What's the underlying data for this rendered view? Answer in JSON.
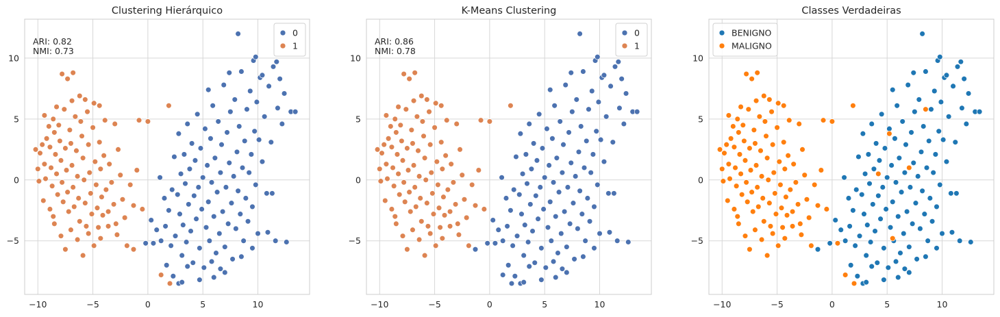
{
  "colors": {
    "cluster0": "#4c72b0",
    "cluster1": "#dd8452",
    "benigno": "#1f77b4",
    "maligno": "#ff7f0e",
    "grid": "#d7d7d7",
    "background": "#ffffff"
  },
  "chart_data": [
    {
      "type": "scatter",
      "title": "Clustering Hierárquico",
      "xlabel": "",
      "ylabel": "",
      "xlim": [
        -11.2,
        14.7
      ],
      "ylim": [
        -9.4,
        13.2
      ],
      "xticks": [
        -10,
        -5,
        0,
        5,
        10
      ],
      "yticks": [
        -5,
        0,
        5,
        10
      ],
      "tick_labels_x": [
        "−10",
        "−5",
        "0",
        "5",
        "10"
      ],
      "tick_labels_y": [
        "−5",
        "0",
        "5",
        "10"
      ],
      "grid": true,
      "legend_position": "top-right",
      "metrics_text": [
        "ARI: 0.82",
        "NMI: 0.73"
      ],
      "series": [
        {
          "name": "0",
          "color_key": "cluster0",
          "ref": "blob_right",
          "extra": [
            [
              -0.2,
              -5.2
            ],
            [
              0.5,
              -5.2
            ],
            [
              1.2,
              -5.0
            ]
          ]
        },
        {
          "name": "1",
          "color_key": "cluster1",
          "ref": "blob_left",
          "extra": [
            [
              -1.9,
              -5.4
            ],
            [
              -1.3,
              -5.7
            ],
            [
              0.0,
              4.8
            ],
            [
              1.2,
              -7.8
            ],
            [
              2.0,
              -8.5
            ]
          ]
        }
      ]
    },
    {
      "type": "scatter",
      "title": "K-Means Clustering",
      "xlabel": "",
      "ylabel": "",
      "xlim": [
        -11.2,
        14.7
      ],
      "ylim": [
        -9.4,
        13.2
      ],
      "xticks": [
        -10,
        -5,
        0,
        5,
        10
      ],
      "yticks": [
        -5,
        0,
        5,
        10
      ],
      "tick_labels_x": [
        "−10",
        "−5",
        "0",
        "5",
        "10"
      ],
      "tick_labels_y": [
        "−5",
        "0",
        "5",
        "10"
      ],
      "grid": true,
      "legend_position": "top-right",
      "metrics_text": [
        "ARI: 0.86",
        "NMI: 0.78"
      ],
      "series": [
        {
          "name": "0",
          "color_key": "cluster0",
          "ref": "blob_right",
          "extra": [
            [
              -0.2,
              -5.2
            ],
            [
              0.5,
              -5.2
            ],
            [
              1.2,
              -5.0
            ],
            [
              1.2,
              -7.8
            ],
            [
              2.0,
              -8.5
            ],
            [
              -1.3,
              -5.7
            ]
          ]
        },
        {
          "name": "1",
          "color_key": "cluster1",
          "ref": "blob_left",
          "extra": [
            [
              -1.9,
              -5.4
            ],
            [
              0.0,
              4.8
            ]
          ]
        }
      ]
    },
    {
      "type": "scatter",
      "title": "Classes Verdadeiras",
      "xlabel": "",
      "ylabel": "",
      "xlim": [
        -11.2,
        14.7
      ],
      "ylim": [
        -9.4,
        13.2
      ],
      "xticks": [
        -10,
        -5,
        0,
        5,
        10
      ],
      "yticks": [
        -5,
        0,
        5,
        10
      ],
      "tick_labels_x": [
        "−10",
        "−5",
        "0",
        "5",
        "10"
      ],
      "tick_labels_y": [
        "−5",
        "0",
        "5",
        "10"
      ],
      "grid": true,
      "legend_position": "top-left",
      "metrics_text": [],
      "series": [
        {
          "name": "BENIGNO",
          "color_key": "benigno",
          "ref": "blob_right",
          "extra": [
            [
              -0.2,
              -5.2
            ],
            [
              1.2,
              -5.0
            ],
            [
              -1.3,
              -5.7
            ]
          ]
        },
        {
          "name": "MALIGNO",
          "color_key": "maligno",
          "ref": "blob_left",
          "extra": [
            [
              0.5,
              -5.2
            ],
            [
              -1.9,
              -5.4
            ],
            [
              0.0,
              4.8
            ],
            [
              1.2,
              -7.8
            ],
            [
              2.0,
              -8.5
            ],
            [
              5.2,
              3.8
            ],
            [
              7.0,
              1.0
            ],
            [
              5.5,
              -4.8
            ],
            [
              8.5,
              5.8
            ],
            [
              4.2,
              0.5
            ]
          ]
        }
      ]
    }
  ],
  "point_clouds": {
    "blob_left": [
      [
        -10.2,
        2.5
      ],
      [
        -10.0,
        0.9
      ],
      [
        -9.8,
        2.2
      ],
      [
        -9.6,
        2.9
      ],
      [
        -9.4,
        1.3
      ],
      [
        -9.3,
        0.1
      ],
      [
        -9.2,
        3.4
      ],
      [
        -9.0,
        4.4
      ],
      [
        -8.9,
        2.7
      ],
      [
        -8.8,
        1.0
      ],
      [
        -8.7,
        -0.5
      ],
      [
        -8.6,
        5.0
      ],
      [
        -8.5,
        3.9
      ],
      [
        -8.4,
        2.1
      ],
      [
        -8.3,
        0.5
      ],
      [
        -8.2,
        -1.2
      ],
      [
        -8.1,
        4.5
      ],
      [
        -8.0,
        3.2
      ],
      [
        -7.9,
        1.6
      ],
      [
        -7.8,
        -0.2
      ],
      [
        -7.7,
        -1.8
      ],
      [
        -7.6,
        5.8
      ],
      [
        -7.5,
        2.6
      ],
      [
        -7.4,
        0.8
      ],
      [
        -7.3,
        -1.0
      ],
      [
        -7.2,
        -2.6
      ],
      [
        -7.1,
        4.1
      ],
      [
        -7.0,
        3.0
      ],
      [
        -6.9,
        1.2
      ],
      [
        -6.8,
        -0.6
      ],
      [
        -6.7,
        -2.2
      ],
      [
        -6.6,
        5.2
      ],
      [
        -6.5,
        2.4
      ],
      [
        -6.4,
        0.3
      ],
      [
        -6.3,
        -1.5
      ],
      [
        -6.2,
        -3.4
      ],
      [
        -6.1,
        4.8
      ],
      [
        -6.0,
        3.6
      ],
      [
        -5.9,
        1.8
      ],
      [
        -5.8,
        0.0
      ],
      [
        -5.7,
        -1.9
      ],
      [
        -5.6,
        -3.8
      ],
      [
        -5.5,
        5.6
      ],
      [
        -5.4,
        2.9
      ],
      [
        -5.3,
        0.6
      ],
      [
        -5.2,
        -1.1
      ],
      [
        -5.1,
        -2.8
      ],
      [
        -5.0,
        4.3
      ],
      [
        -4.9,
        6.3
      ],
      [
        -4.8,
        1.5
      ],
      [
        -4.7,
        -0.4
      ],
      [
        -4.6,
        -2.3
      ],
      [
        -4.5,
        -3.9
      ],
      [
        -4.4,
        3.1
      ],
      [
        -4.3,
        0.9
      ],
      [
        -4.2,
        -1.4
      ],
      [
        -4.1,
        -2.9
      ],
      [
        -4.0,
        2.0
      ],
      [
        -3.8,
        -0.8
      ],
      [
        -3.6,
        -2.6
      ],
      [
        -3.5,
        1.3
      ],
      [
        -3.3,
        -0.2
      ],
      [
        -3.1,
        -2.0
      ],
      [
        -2.9,
        -3.6
      ],
      [
        -2.7,
        2.5
      ],
      [
        -2.5,
        0.4
      ],
      [
        -2.3,
        -1.6
      ],
      [
        -2.1,
        -3.1
      ],
      [
        -1.6,
        -0.4
      ],
      [
        -1.3,
        -2.1
      ],
      [
        -7.8,
        8.7
      ],
      [
        -7.3,
        8.3
      ],
      [
        -6.8,
        8.8
      ],
      [
        -9.9,
        -0.1
      ],
      [
        -9.5,
        -1.7
      ],
      [
        -8.9,
        -2.4
      ],
      [
        -8.5,
        -3.6
      ],
      [
        -7.9,
        -4.6
      ],
      [
        -7.5,
        -5.7
      ],
      [
        -7.0,
        -4.1
      ],
      [
        -6.4,
        -4.9
      ],
      [
        -5.9,
        -6.2
      ],
      [
        -5.4,
        -4.4
      ],
      [
        -4.9,
        -5.4
      ],
      [
        -4.3,
        -4.8
      ],
      [
        -3.6,
        -3.8
      ],
      [
        -2.8,
        -4.5
      ],
      [
        -1.0,
        0.8
      ],
      [
        -0.5,
        -2.4
      ],
      [
        -9.4,
        5.3
      ],
      [
        -8.3,
        6.0
      ],
      [
        -6.9,
        6.5
      ],
      [
        -6.2,
        6.9
      ],
      [
        -5.7,
        6.6
      ],
      [
        -4.4,
        6.1
      ],
      [
        1.9,
        6.1
      ],
      [
        -0.8,
        4.9
      ],
      [
        -3.0,
        4.6
      ],
      [
        -3.9,
        4.9
      ],
      [
        -8.6,
        -3.0
      ]
    ],
    "blob_right": [
      [
        0.3,
        -3.3
      ],
      [
        0.8,
        -4.1
      ],
      [
        1.1,
        0.2
      ],
      [
        1.5,
        -1.5
      ],
      [
        1.6,
        -3.8
      ],
      [
        1.9,
        -2.5
      ],
      [
        2.1,
        -5.4
      ],
      [
        2.2,
        -0.8
      ],
      [
        2.4,
        1.9
      ],
      [
        2.5,
        -4.6
      ],
      [
        2.7,
        -1.2
      ],
      [
        2.8,
        3.8
      ],
      [
        2.9,
        -2.8
      ],
      [
        3.0,
        0.5
      ],
      [
        3.1,
        -6.2
      ],
      [
        3.2,
        -3.7
      ],
      [
        3.3,
        2.1
      ],
      [
        3.4,
        -0.3
      ],
      [
        3.5,
        -5.1
      ],
      [
        3.6,
        4.6
      ],
      [
        3.7,
        -2.0
      ],
      [
        3.8,
        0.9
      ],
      [
        3.9,
        -4.2
      ],
      [
        4.0,
        3.0
      ],
      [
        4.1,
        -6.8
      ],
      [
        4.2,
        -1.3
      ],
      [
        4.3,
        1.6
      ],
      [
        4.4,
        -3.2
      ],
      [
        4.5,
        5.4
      ],
      [
        4.6,
        -0.6
      ],
      [
        4.7,
        -5.6
      ],
      [
        4.8,
        2.6
      ],
      [
        4.9,
        -2.4
      ],
      [
        5.0,
        0.2
      ],
      [
        5.1,
        -7.2
      ],
      [
        5.2,
        4.2
      ],
      [
        5.3,
        -3.9
      ],
      [
        5.4,
        1.2
      ],
      [
        5.5,
        -1.8
      ],
      [
        5.6,
        -5.0
      ],
      [
        5.7,
        3.4
      ],
      [
        5.8,
        -0.2
      ],
      [
        5.9,
        6.1
      ],
      [
        6.0,
        -3.0
      ],
      [
        6.1,
        1.8
      ],
      [
        6.2,
        -6.0
      ],
      [
        6.3,
        -1.0
      ],
      [
        6.4,
        4.8
      ],
      [
        6.5,
        -4.4
      ],
      [
        6.6,
        0.6
      ],
      [
        6.7,
        2.9
      ],
      [
        6.8,
        -2.6
      ],
      [
        6.9,
        7.8
      ],
      [
        7.0,
        -5.5
      ],
      [
        7.1,
        -0.6
      ],
      [
        7.2,
        3.9
      ],
      [
        7.3,
        -3.6
      ],
      [
        7.4,
        1.4
      ],
      [
        7.5,
        5.6
      ],
      [
        7.6,
        -1.9
      ],
      [
        7.7,
        -6.5
      ],
      [
        7.8,
        0.3
      ],
      [
        7.9,
        6.6
      ],
      [
        8.0,
        -4.0
      ],
      [
        8.1,
        2.3
      ],
      [
        8.2,
        -0.9
      ],
      [
        8.3,
        4.4
      ],
      [
        8.4,
        -2.8
      ],
      [
        8.5,
        8.9
      ],
      [
        8.6,
        1.0
      ],
      [
        8.7,
        -5.0
      ],
      [
        8.8,
        3.2
      ],
      [
        8.9,
        -1.5
      ],
      [
        9.0,
        5.8
      ],
      [
        9.1,
        -3.4
      ],
      [
        9.2,
        0.6
      ],
      [
        9.3,
        7.3
      ],
      [
        9.4,
        2.1
      ],
      [
        9.5,
        -2.2
      ],
      [
        9.6,
        9.8
      ],
      [
        9.7,
        4.0
      ],
      [
        9.8,
        -0.4
      ],
      [
        9.9,
        6.4
      ],
      [
        10.0,
        -4.4
      ],
      [
        10.1,
        3.3
      ],
      [
        10.2,
        8.4
      ],
      [
        10.4,
        1.5
      ],
      [
        10.6,
        5.2
      ],
      [
        10.8,
        -1.1
      ],
      [
        11.0,
        7.7
      ],
      [
        11.2,
        3.1
      ],
      [
        11.4,
        9.3
      ],
      [
        11.6,
        -5.0
      ],
      [
        11.8,
        5.9
      ],
      [
        12.0,
        8.3
      ],
      [
        12.2,
        4.6
      ],
      [
        12.4,
        7.1
      ],
      [
        12.6,
        -5.1
      ],
      [
        13.0,
        5.6
      ],
      [
        13.4,
        5.6
      ],
      [
        8.2,
        12.0
      ],
      [
        9.8,
        10.1
      ],
      [
        7.4,
        8.8
      ],
      [
        5.5,
        7.4
      ],
      [
        10.4,
        8.6
      ],
      [
        11.7,
        9.7
      ],
      [
        6.0,
        -8.0
      ],
      [
        4.7,
        -8.2
      ],
      [
        7.0,
        -7.6
      ],
      [
        3.6,
        -7.1
      ],
      [
        2.8,
        -8.5
      ],
      [
        2.3,
        -7.9
      ],
      [
        3.1,
        -8.4
      ],
      [
        1.7,
        -7.0
      ],
      [
        5.8,
        -6.7
      ],
      [
        6.6,
        -7.3
      ],
      [
        8.5,
        -6.3
      ],
      [
        9.5,
        -5.6
      ],
      [
        10.9,
        -4.3
      ],
      [
        11.3,
        -1.1
      ]
    ]
  }
}
